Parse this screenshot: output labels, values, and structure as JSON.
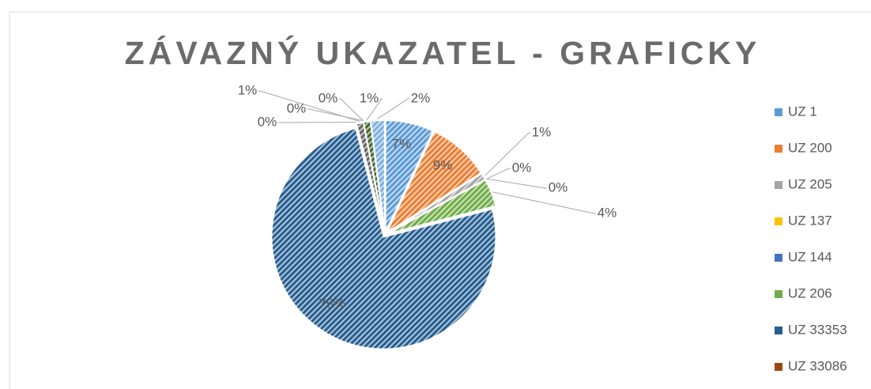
{
  "chart_data": {
    "type": "pie",
    "title": "ZÁVAZNÝ UKAZATEL - GRAFICKY",
    "categories": [
      "UZ 1",
      "UZ 200",
      "UZ 205",
      "UZ 137",
      "UZ 144",
      "UZ 206",
      "UZ 33353",
      "UZ 33086",
      null,
      null,
      null,
      null,
      null
    ],
    "values": [
      7,
      9,
      1,
      0,
      0,
      4,
      75,
      0,
      1,
      0,
      0,
      1,
      2
    ],
    "value_labels": [
      "7%",
      "9%",
      "1%",
      "0%",
      "0%",
      "4%",
      "75%",
      "0%",
      "1%",
      "0%",
      "0%",
      "1%",
      "2%"
    ],
    "colors": [
      "#5b9bd5",
      "#ed7d31",
      "#a5a5a5",
      "#ffc000",
      "#4472c4",
      "#70ad47",
      "#255e91",
      "#9e480e",
      "#636363",
      "#997300",
      "#264478",
      "#43682b",
      "#7cafdd"
    ],
    "legend": "right"
  }
}
